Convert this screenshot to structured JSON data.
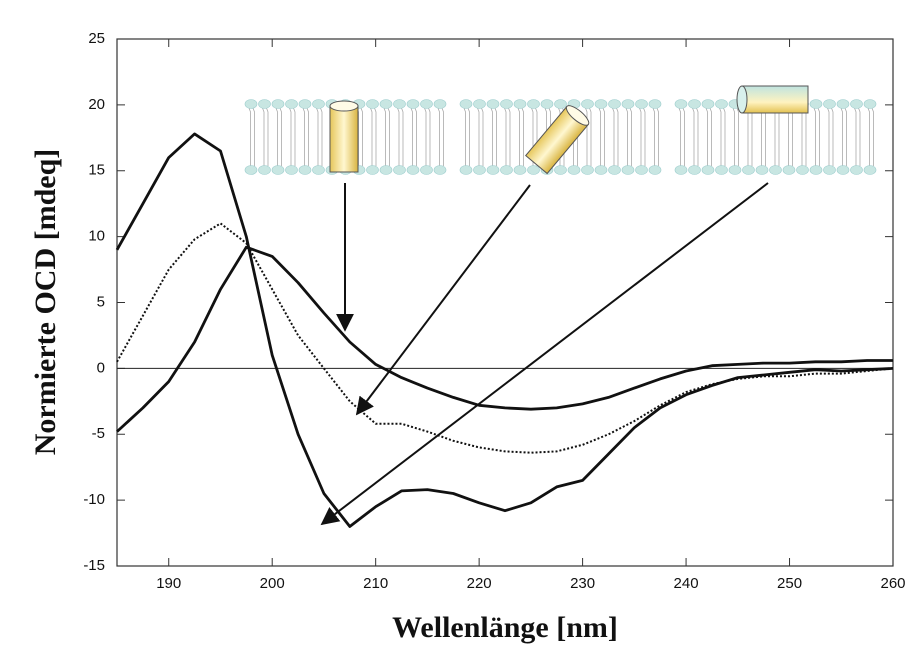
{
  "chart_data": {
    "type": "line",
    "xlabel": "Wellenlänge [nm]",
    "ylabel": "Normierte OCD [mdeq]",
    "x": [
      185,
      187.5,
      190,
      192.5,
      195,
      197.5,
      200,
      202.5,
      205,
      207.5,
      210,
      212.5,
      215,
      217.5,
      220,
      222.5,
      225,
      227.5,
      230,
      232.5,
      235,
      237.5,
      240,
      242.5,
      245,
      247.5,
      250,
      252.5,
      255,
      257.5,
      260
    ],
    "series": [
      {
        "color": "#111111",
        "dash": "solid",
        "values": [
          -4.8,
          -3,
          -1,
          2,
          6,
          9.2,
          8.5,
          6.5,
          4.2,
          2,
          0.3,
          -0.7,
          -1.5,
          -2.2,
          -2.8,
          -3,
          -3.1,
          -3,
          -2.7,
          -2.2,
          -1.5,
          -0.8,
          -0.2,
          0.2,
          0.3,
          0.4,
          0.4,
          0.5,
          0.5,
          0.6,
          0.6
        ]
      },
      {
        "color": "#111111",
        "dash": "dotted",
        "values": [
          0.5,
          4,
          7.5,
          9.8,
          11,
          9.5,
          6,
          2.5,
          0,
          -2.5,
          -4.2,
          -4.2,
          -4.8,
          -5.5,
          -6,
          -6.3,
          -6.4,
          -6.3,
          -5.8,
          -5,
          -4,
          -2.8,
          -1.8,
          -1.2,
          -0.8,
          -0.6,
          -0.6,
          -0.4,
          -0.4,
          -0.2,
          0
        ]
      },
      {
        "color": "#111111",
        "dash": "solid",
        "values": [
          9,
          12.5,
          16,
          17.8,
          16.5,
          10,
          1,
          -5,
          -9.5,
          -12,
          -10.5,
          -9.3,
          -9.2,
          -9.5,
          -10.2,
          -10.8,
          -10.2,
          -9,
          -8.5,
          -6.5,
          -4.5,
          -3,
          -2,
          -1.3,
          -0.7,
          -0.5,
          -0.3,
          -0.1,
          -0.2,
          -0.1,
          0
        ]
      }
    ],
    "xlim": [
      185,
      260
    ],
    "xticks": [
      190,
      200,
      210,
      220,
      230,
      240,
      250,
      260
    ],
    "ylim": [
      -15,
      25
    ],
    "yticks": [
      -15,
      -10,
      -5,
      0,
      5,
      10,
      15,
      20,
      25
    ],
    "zero_line": true
  }
}
